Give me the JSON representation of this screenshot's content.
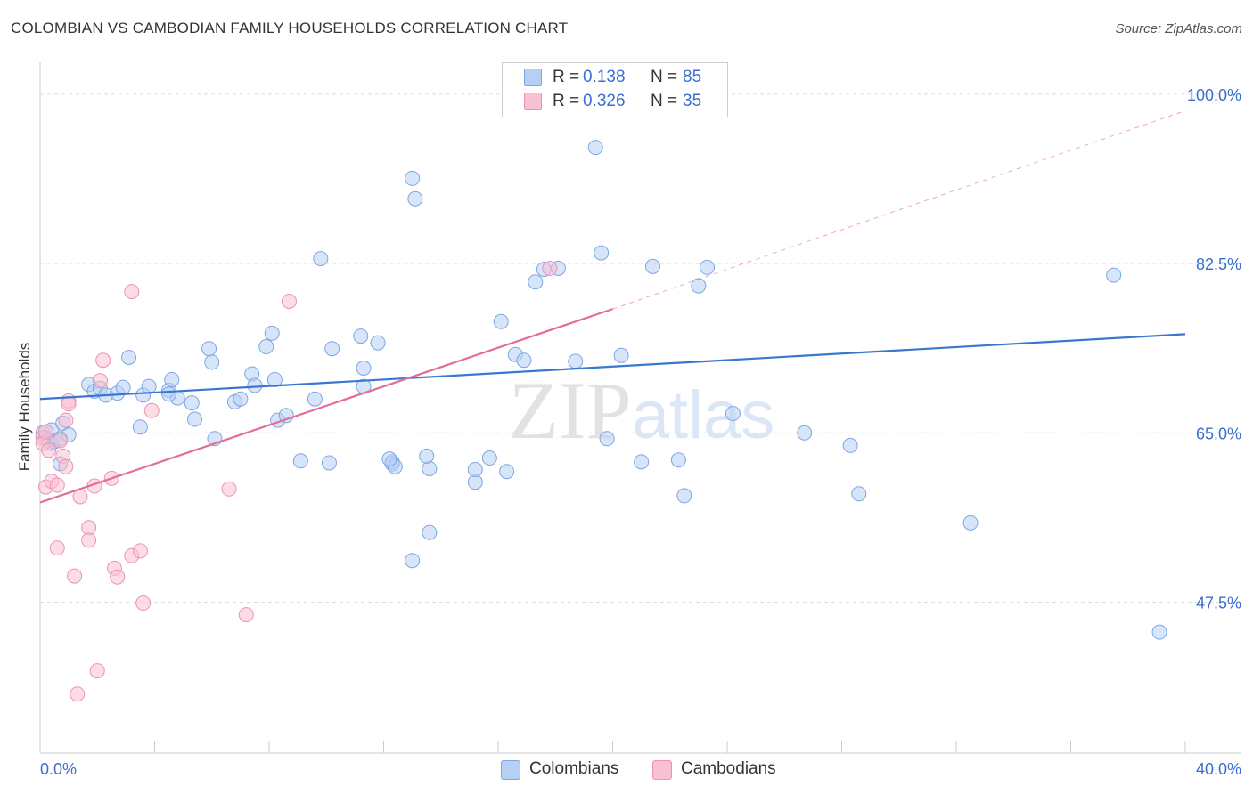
{
  "chart_data": {
    "type": "scatter",
    "title": "COLOMBIAN VS CAMBODIAN FAMILY HOUSEHOLDS CORRELATION CHART",
    "source": "Source: ZipAtlas.com",
    "xlabel": "",
    "ylabel": "Family Households",
    "xlim": [
      0,
      40
    ],
    "ylim": [
      31.9,
      103.3
    ],
    "x_tick_labels": [
      "0.0%",
      "40.0%"
    ],
    "y_ticks": [
      47.5,
      65.0,
      82.5,
      100.0
    ],
    "y_tick_labels": [
      "47.5%",
      "65.0%",
      "82.5%",
      "100.0%"
    ],
    "grid": true,
    "watermark": "ZIPatlas",
    "stats": [
      {
        "r_label": "R =",
        "r_value": "0.138",
        "n_label": "N =",
        "n_value": "85"
      },
      {
        "r_label": "R =",
        "r_value": "0.326",
        "n_label": "N =",
        "n_value": "35"
      }
    ],
    "legend": [
      "Colombians",
      "Cambodians"
    ],
    "colors": {
      "colombians_fill": "#b6cff5",
      "colombians_stroke": "#7fa6e0",
      "colombians_line": "#3a78d0",
      "cambodians_fill": "#f9c0d1",
      "cambodians_stroke": "#ec93b0",
      "cambodians_line": "#e46c96",
      "tick_label": "#3a6fcf"
    },
    "series": [
      {
        "name": "Colombians",
        "trend": {
          "x": [
            0,
            40
          ],
          "y": [
            68.5,
            75.2
          ],
          "dashed_to": null
        },
        "points": [
          [
            0.1,
            65.0
          ],
          [
            0.2,
            64.5
          ],
          [
            0.3,
            64.2
          ],
          [
            0.4,
            63.9
          ],
          [
            0.4,
            65.3
          ],
          [
            0.5,
            64.1
          ],
          [
            0.7,
            64.4
          ],
          [
            0.8,
            66.0
          ],
          [
            1.0,
            64.8
          ],
          [
            0.7,
            61.8
          ],
          [
            1.7,
            70.0
          ],
          [
            1.9,
            69.3
          ],
          [
            2.1,
            69.6
          ],
          [
            2.3,
            68.9
          ],
          [
            2.7,
            69.1
          ],
          [
            2.9,
            69.7
          ],
          [
            3.1,
            72.8
          ],
          [
            3.5,
            65.6
          ],
          [
            3.6,
            68.9
          ],
          [
            3.8,
            69.8
          ],
          [
            4.5,
            69.4
          ],
          [
            4.6,
            70.5
          ],
          [
            4.8,
            68.6
          ],
          [
            5.3,
            68.1
          ],
          [
            5.4,
            66.4
          ],
          [
            5.9,
            73.7
          ],
          [
            6.0,
            72.3
          ],
          [
            6.1,
            64.4
          ],
          [
            6.8,
            68.2
          ],
          [
            7.0,
            68.5
          ],
          [
            7.4,
            71.1
          ],
          [
            7.5,
            69.9
          ],
          [
            7.9,
            73.9
          ],
          [
            8.1,
            75.3
          ],
          [
            8.2,
            70.5
          ],
          [
            8.3,
            66.3
          ],
          [
            8.6,
            66.8
          ],
          [
            9.1,
            62.1
          ],
          [
            9.6,
            68.5
          ],
          [
            9.8,
            83.0
          ],
          [
            10.1,
            61.9
          ],
          [
            10.2,
            73.7
          ],
          [
            11.3,
            69.8
          ],
          [
            11.2,
            75.0
          ],
          [
            11.8,
            74.3
          ],
          [
            11.3,
            71.7
          ],
          [
            12.3,
            62.0
          ],
          [
            12.3,
            61.8
          ],
          [
            12.4,
            61.5
          ],
          [
            13.0,
            91.3
          ],
          [
            13.1,
            89.2
          ],
          [
            13.6,
            61.3
          ],
          [
            15.2,
            59.9
          ],
          [
            15.2,
            61.2
          ],
          [
            15.7,
            62.4
          ],
          [
            16.1,
            76.5
          ],
          [
            16.3,
            61.0
          ],
          [
            16.6,
            73.1
          ],
          [
            16.9,
            72.5
          ],
          [
            17.3,
            80.6
          ],
          [
            17.6,
            81.9
          ],
          [
            18.1,
            82.0
          ],
          [
            18.7,
            72.4
          ],
          [
            19.4,
            94.5
          ],
          [
            19.6,
            83.6
          ],
          [
            19.8,
            64.4
          ],
          [
            20.3,
            73.0
          ],
          [
            21.0,
            62.0
          ],
          [
            21.4,
            82.2
          ],
          [
            22.5,
            58.5
          ],
          [
            23.0,
            80.2
          ],
          [
            23.3,
            82.1
          ],
          [
            22.3,
            62.2
          ],
          [
            13.5,
            62.6
          ],
          [
            12.2,
            62.3
          ],
          [
            13.6,
            54.7
          ],
          [
            13.0,
            51.8
          ],
          [
            4.5,
            69.0
          ],
          [
            24.2,
            67.0
          ],
          [
            28.3,
            63.7
          ],
          [
            28.6,
            58.7
          ],
          [
            26.7,
            65.0
          ],
          [
            32.5,
            55.7
          ],
          [
            39.1,
            44.4
          ],
          [
            37.5,
            81.3
          ]
        ]
      },
      {
        "name": "Cambodians",
        "trend": {
          "x": [
            0,
            20
          ],
          "y": [
            57.8,
            77.8
          ],
          "dashed_to": [
            40,
            98.3
          ]
        },
        "points": [
          [
            0.1,
            64.5
          ],
          [
            0.1,
            63.9
          ],
          [
            0.2,
            65.1
          ],
          [
            0.2,
            59.4
          ],
          [
            0.3,
            63.2
          ],
          [
            0.4,
            60.0
          ],
          [
            0.6,
            59.6
          ],
          [
            0.7,
            64.2
          ],
          [
            0.8,
            62.6
          ],
          [
            0.9,
            61.5
          ],
          [
            0.9,
            66.3
          ],
          [
            1.0,
            68.3
          ],
          [
            1.0,
            68.0
          ],
          [
            1.4,
            58.4
          ],
          [
            1.7,
            55.2
          ],
          [
            1.7,
            53.9
          ],
          [
            1.9,
            59.5
          ],
          [
            2.1,
            70.4
          ],
          [
            2.2,
            72.5
          ],
          [
            2.5,
            60.3
          ],
          [
            2.6,
            51.0
          ],
          [
            2.7,
            50.1
          ],
          [
            3.2,
            52.3
          ],
          [
            3.6,
            47.4
          ],
          [
            3.5,
            52.8
          ],
          [
            3.9,
            67.3
          ],
          [
            0.6,
            53.1
          ],
          [
            1.2,
            50.2
          ],
          [
            2.0,
            40.4
          ],
          [
            1.3,
            38.0
          ],
          [
            3.2,
            79.6
          ],
          [
            6.6,
            59.2
          ],
          [
            7.2,
            46.2
          ],
          [
            8.7,
            78.6
          ],
          [
            17.8,
            82.0
          ]
        ]
      }
    ]
  }
}
